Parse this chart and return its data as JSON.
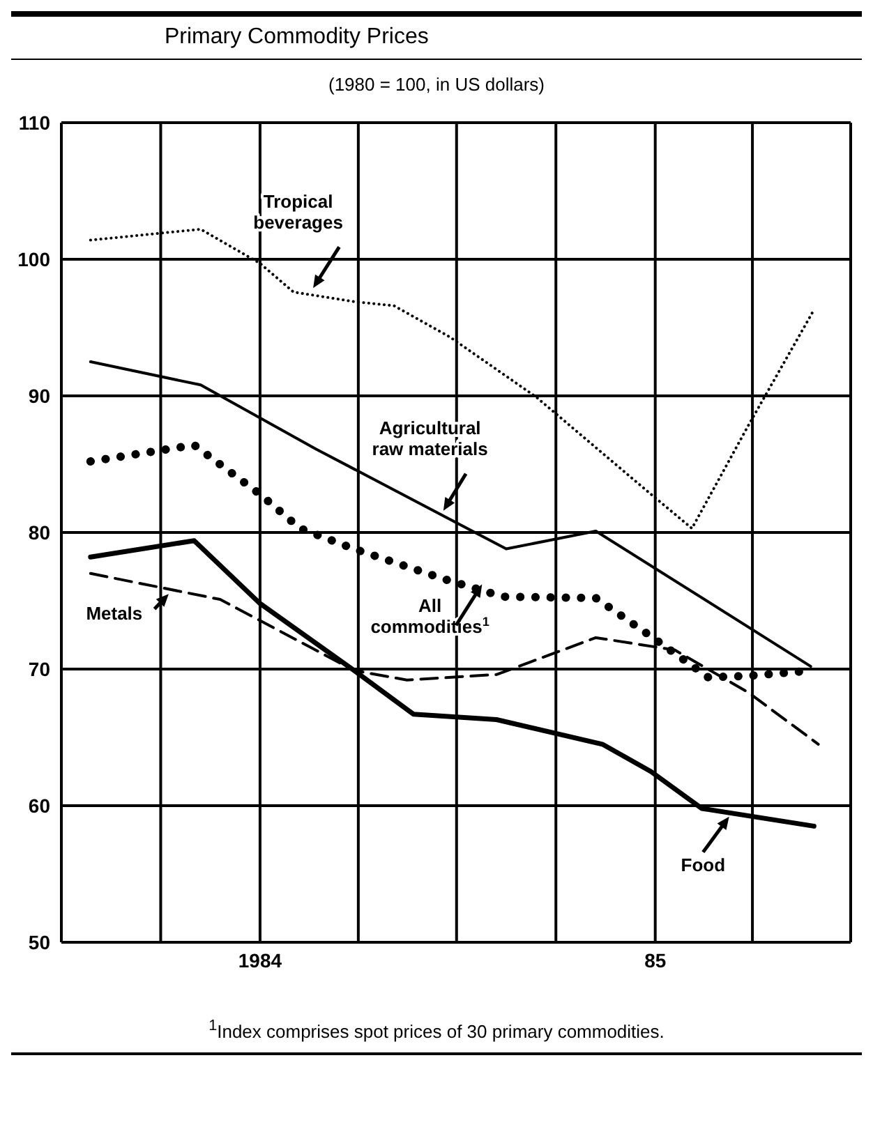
{
  "chart_data": {
    "type": "line",
    "title": "Primary Commodity Prices",
    "subtitle": "(1980 = 100, in US dollars)",
    "annotations": [
      "$^{1}$Index comprises spot prices of 30 primary commodities."
    ],
    "xlim": [
      "1983-07",
      "1985-07"
    ],
    "xticks": [
      {
        "value": "1983-10",
        "label": null
      },
      {
        "value": "1984",
        "label": "1984"
      },
      {
        "value": "1984-04",
        "label": null
      },
      {
        "value": "1984-07",
        "label": null
      },
      {
        "value": "1984-10",
        "label": null
      },
      {
        "value": "1985",
        "label": "85"
      },
      {
        "value": "1985-04",
        "label": null
      }
    ],
    "ylim": [
      50,
      110
    ],
    "yticks": [
      50,
      60,
      70,
      80,
      90,
      100,
      110
    ],
    "grid": true,
    "marker": "none",
    "series": [
      {
        "name": "Tropical beverages",
        "color": "#000000",
        "line_style": "dotted",
        "x": [
          "1983-07-28",
          "1983-11-07",
          "1984-01-01",
          "1984-02-01",
          "1984-03-28",
          "1984-05-04",
          "1984-06-25",
          "1984-09-13",
          "1984-12-25",
          "1985-02-04",
          "1985-03-28",
          "1985-05-28"
        ],
        "values": [
          101.4,
          102.2,
          99.7,
          97.6,
          96.9,
          96.6,
          94.3,
          89.9,
          83,
          80.3,
          87.8,
          96.3
        ]
      },
      {
        "name": "Agricultural raw materials",
        "color": "#000000",
        "line_style": "solid",
        "x": [
          "1983-07-28",
          "1983-11-07",
          "1984-02-22",
          "1984-08-16",
          "1984-11-07",
          "1985-05-25"
        ],
        "values": [
          92.5,
          90.8,
          86.1,
          78.8,
          80.1,
          70.2
        ]
      },
      {
        "name": "All commodities$^{1}$",
        "color": "#000000",
        "line_style": "dotted",
        "x": [
          "1983-07-28",
          "1983-11-01",
          "1984-01-01",
          "1984-02-07",
          "1984-03-28",
          "1984-06-19",
          "1984-08-13",
          "1984-11-07",
          "1984-12-28",
          "1985-02-19",
          "1985-03-28",
          "1985-05-28"
        ],
        "values": [
          85.2,
          86.4,
          82.8,
          80.3,
          78.8,
          76.6,
          75.3,
          75.2,
          72.4,
          69.4,
          69.5,
          69.9
        ]
      },
      {
        "name": "Metals",
        "color": "#000000",
        "line_style": "dashed",
        "x": [
          "1983-07-28",
          "1983-11-25",
          "1984-02-07",
          "1984-03-28",
          "1984-05-16",
          "1984-08-07",
          "1984-11-07",
          "1985-01-19",
          "1985-03-28",
          "1985-06-01"
        ],
        "values": [
          77,
          75.1,
          72,
          69.9,
          69.2,
          69.6,
          72.3,
          71.4,
          68.3,
          64.5
        ]
      },
      {
        "name": "Food",
        "color": "#000000",
        "line_style": "solid",
        "x": [
          "1983-07-28",
          "1983-11-01",
          "1984-01-01",
          "1984-03-28",
          "1984-05-22",
          "1984-08-07",
          "1984-11-13",
          "1984-12-28",
          "1985-02-13",
          "1985-05-28"
        ],
        "values": [
          78.2,
          79.4,
          74.8,
          69.9,
          66.7,
          66.3,
          64.5,
          62.5,
          59.8,
          58.5
        ]
      }
    ]
  }
}
